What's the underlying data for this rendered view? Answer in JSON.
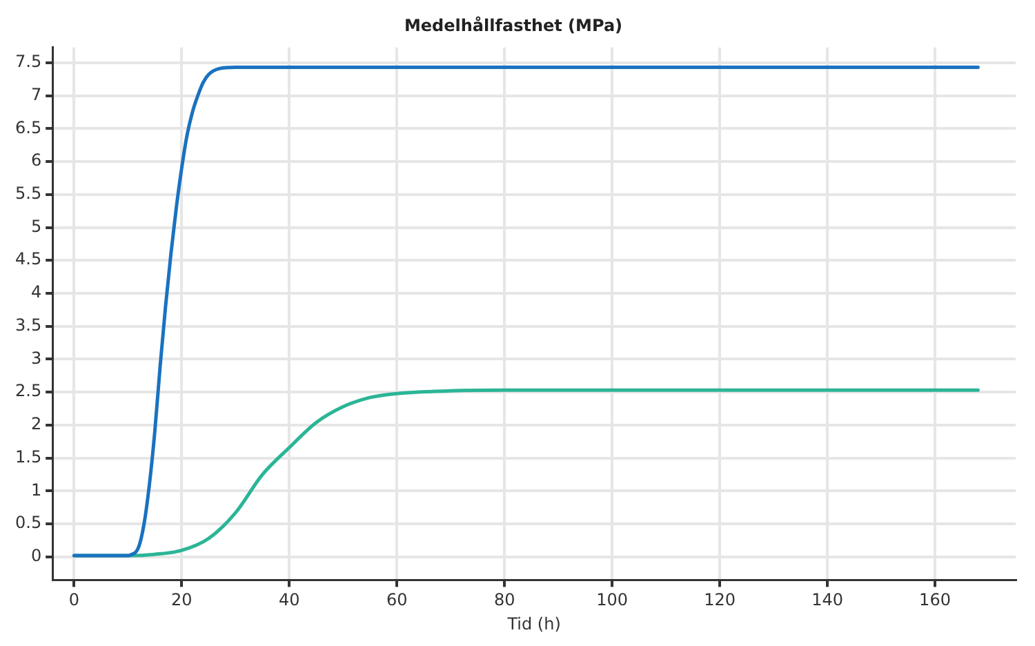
{
  "chart_data": {
    "type": "line",
    "title": "Medelhållfasthet (MPa)",
    "xlabel": "Tid (h)",
    "xlim": [
      -4,
      175
    ],
    "xticks": [
      0,
      20,
      40,
      60,
      80,
      100,
      120,
      140,
      160
    ],
    "ylim": [
      -0.35,
      7.73
    ],
    "yticks": [
      0,
      0.5,
      1,
      1.5,
      2,
      2.5,
      3,
      3.5,
      4,
      4.5,
      5,
      5.5,
      6,
      6.5,
      7,
      7.5
    ],
    "grid": true,
    "legend": false,
    "marker": "none",
    "line_style": "solid",
    "series": [
      {
        "color": "#1a72c0",
        "x": [
          0,
          5,
          10,
          10.5,
          12,
          13,
          14,
          15,
          16,
          17,
          18,
          19,
          20,
          21,
          22,
          23,
          24,
          25,
          27,
          30,
          50,
          100,
          168
        ],
        "values": [
          0.02,
          0.02,
          0.02,
          0.03,
          0.15,
          0.5,
          1.1,
          1.9,
          2.9,
          3.8,
          4.6,
          5.3,
          5.9,
          6.4,
          6.75,
          7.0,
          7.2,
          7.32,
          7.41,
          7.43,
          7.43,
          7.43,
          7.43
        ]
      },
      {
        "color": "#2bb596",
        "x": [
          0,
          5,
          10,
          15,
          20,
          25,
          30,
          35,
          40,
          45,
          50,
          55,
          60,
          70,
          80,
          100,
          168
        ],
        "values": [
          0.02,
          0.02,
          0.02,
          0.04,
          0.1,
          0.28,
          0.67,
          1.25,
          1.66,
          2.04,
          2.28,
          2.42,
          2.48,
          2.52,
          2.53,
          2.53,
          2.53
        ]
      }
    ]
  }
}
